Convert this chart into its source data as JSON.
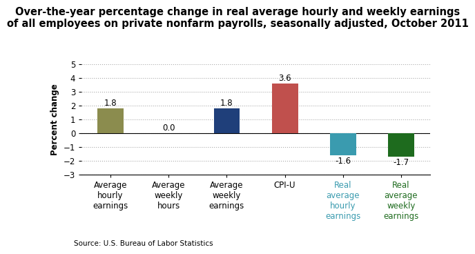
{
  "title": "Over-the-year percentage change in real average hourly and weekly earnings\nof all employees on private nonfarm payrolls, seasonally adjusted, October 2011",
  "categories": [
    "Average\nhourly\nearnings",
    "Average\nweekly\nhours",
    "Average\nweekly\nearnings",
    "CPI-U",
    "Real\naverage\nhourly\nearnings",
    "Real\naverage\nweekly\nearnings"
  ],
  "values": [
    1.8,
    0.0,
    1.8,
    3.6,
    -1.6,
    -1.7
  ],
  "bar_colors": [
    "#8b8c4e",
    "#1f3f7a",
    "#1f3f7a",
    "#c0504d",
    "#3a9baf",
    "#1e6b1e"
  ],
  "tick_colors": [
    "black",
    "black",
    "black",
    "black",
    "#3a9baf",
    "#1e6b1e"
  ],
  "ylabel": "Percent change",
  "ylim": [
    -3,
    5
  ],
  "yticks": [
    -3,
    -2,
    -1,
    0,
    1,
    2,
    3,
    4,
    5
  ],
  "source": "Source: U.S. Bureau of Labor Statistics",
  "title_fontsize": 10.5,
  "label_fontsize": 8.5,
  "tick_fontsize": 8.5,
  "source_fontsize": 7.5,
  "background_color": "#ffffff"
}
